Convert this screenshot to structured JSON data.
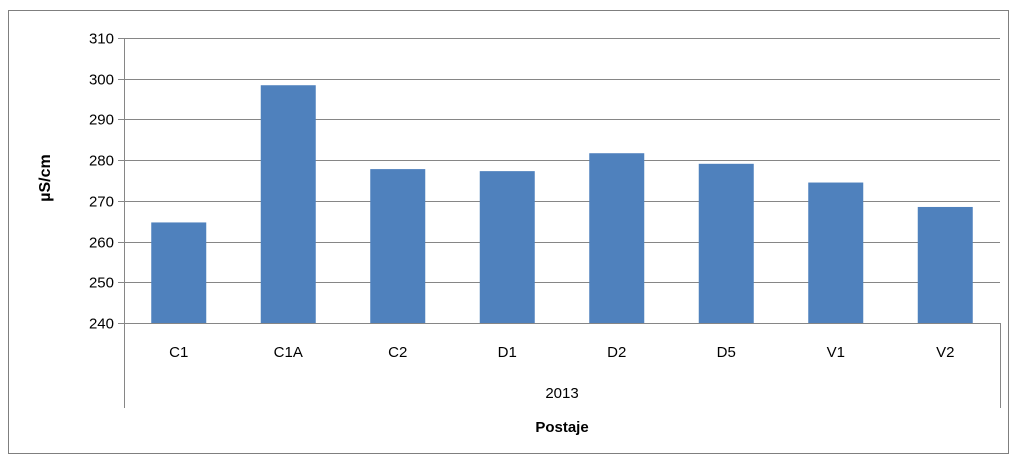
{
  "chart_data": {
    "type": "bar",
    "categories": [
      "C1",
      "C1A",
      "C2",
      "D1",
      "D2",
      "D5",
      "V1",
      "V2"
    ],
    "group_label": "2013",
    "values": [
      264.7,
      298.4,
      277.8,
      277.3,
      281.7,
      279.1,
      274.5,
      268.5
    ],
    "xlabel": "Postaje",
    "ylabel": "µS/cm",
    "ylim": [
      240,
      310
    ],
    "yticks": [
      240,
      250,
      260,
      270,
      280,
      290,
      300,
      310
    ],
    "grid": true,
    "legend": "none",
    "colors": {
      "bar": "#4F81BD",
      "grid": "#868686",
      "axis": "#868686"
    }
  }
}
